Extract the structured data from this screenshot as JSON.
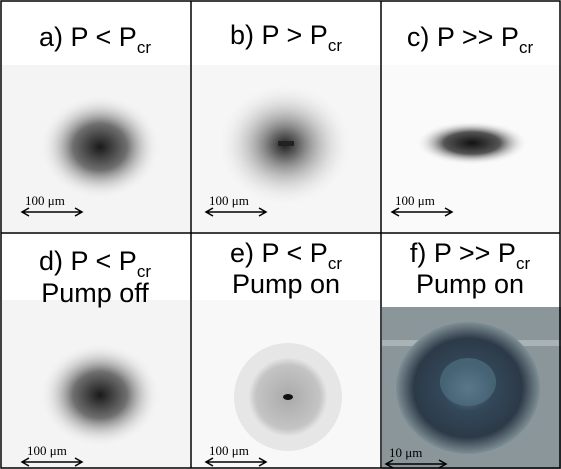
{
  "panels": [
    {
      "label": "a) P < P",
      "sub": "cr",
      "scale": "100 μm"
    },
    {
      "label": "b) P > P",
      "sub": "cr",
      "scale": "100 μm"
    },
    {
      "label": "c) P >> P",
      "sub": "cr",
      "scale": "100 μm"
    },
    {
      "label": "d) P < P",
      "sub": "cr",
      "line2": "Pump off",
      "scale": "100 μm"
    },
    {
      "label": "e) P < P",
      "sub": "cr",
      "line2": "Pump on",
      "scale": "100 μm"
    },
    {
      "label": "f) P >> P",
      "sub": "cr",
      "line2": "Pump on",
      "scale": "10 μm"
    }
  ]
}
